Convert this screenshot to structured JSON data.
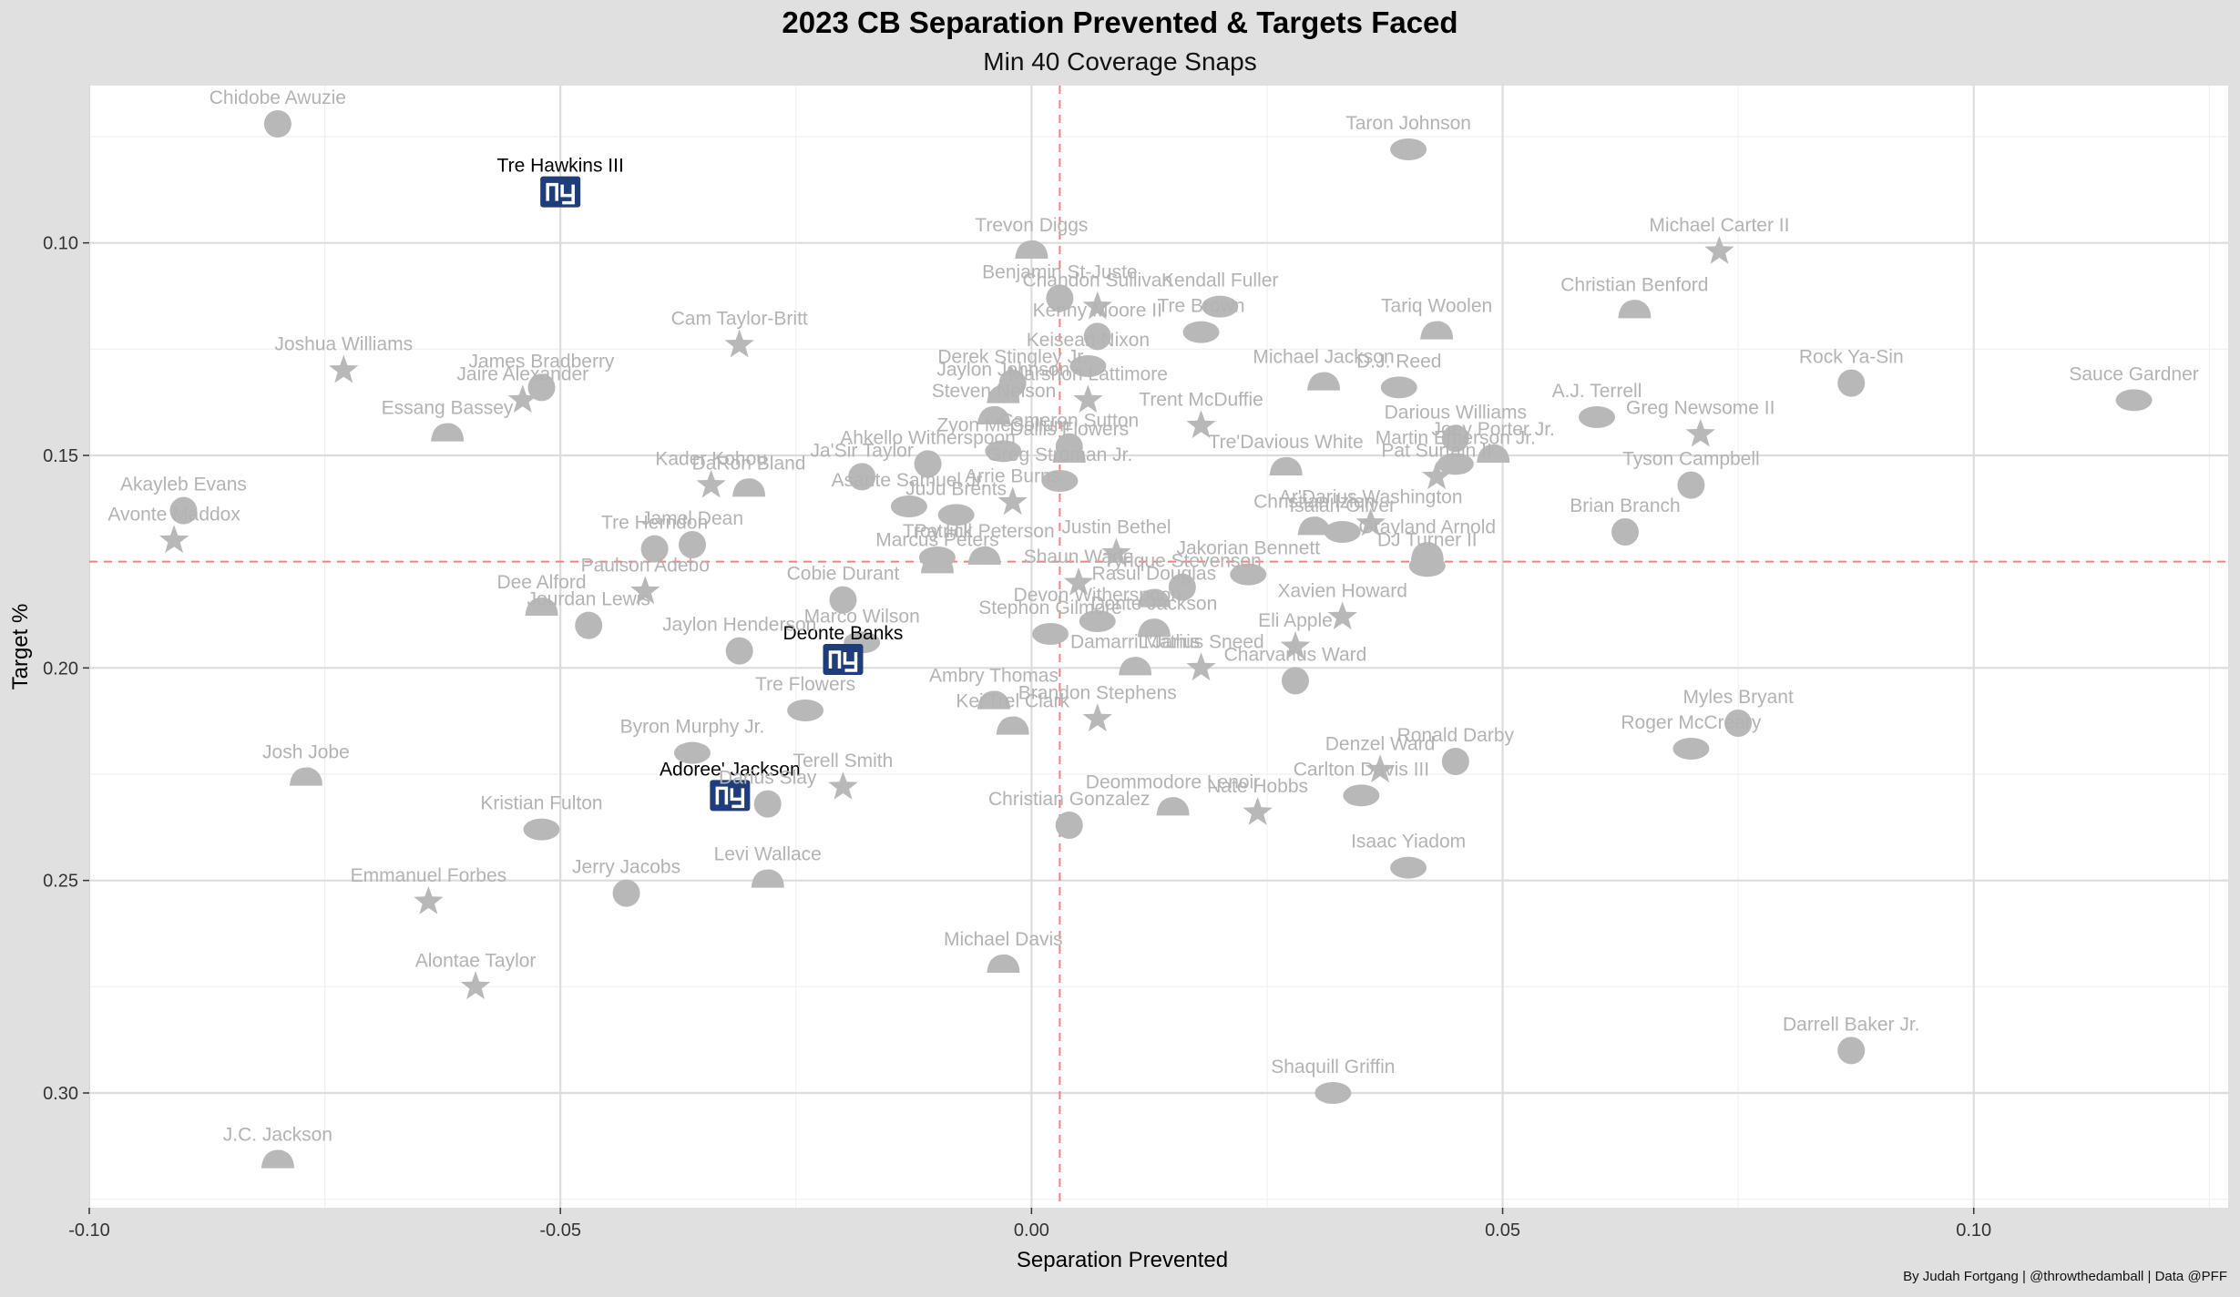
{
  "title": "2023 CB Separation Prevented & Targets Faced",
  "subtitle": "Min 40 Coverage Snaps",
  "caption": "By Judah Fortgang | @throwthedamball | Data @PFF",
  "colors": {
    "background": "#e0e0e0",
    "panel": "#ffffff",
    "grid": "#dcdcdc",
    "point": "#b8b8b8",
    "label": "#b3b3b3",
    "highlight": "#1f3d7a",
    "reference_line": "#e8857f"
  },
  "chart_data": {
    "type": "scatter",
    "xlabel": "Separation Prevented",
    "ylabel": "Target %",
    "xlim": [
      -0.1,
      0.127
    ],
    "ylim": [
      0.327,
      0.063
    ],
    "y_reversed": true,
    "x_ticks": [
      -0.1,
      -0.05,
      0.0,
      0.05,
      0.1
    ],
    "x_tick_labels": [
      "-0.10",
      "-0.05",
      "0.00",
      "0.05",
      "0.10"
    ],
    "y_ticks": [
      0.1,
      0.15,
      0.2,
      0.25,
      0.3
    ],
    "y_tick_labels": [
      "0.10",
      "0.15",
      "0.20",
      "0.25",
      "0.30"
    ],
    "grid": true,
    "reference_lines": {
      "x": 0.003,
      "y": 0.175
    },
    "point_marker": "team-logo-icon",
    "highlight_marker": "ny-giants-logo-icon",
    "points": [
      {
        "name": "Chidobe Awuzie",
        "x": -0.08,
        "y": 0.072
      },
      {
        "name": "Tre Hawkins III",
        "x": -0.05,
        "y": 0.088,
        "highlight": true
      },
      {
        "name": "Taron Johnson",
        "x": 0.04,
        "y": 0.078
      },
      {
        "name": "Trevon Diggs",
        "x": 0.0,
        "y": 0.102
      },
      {
        "name": "Michael Carter II",
        "x": 0.073,
        "y": 0.102
      },
      {
        "name": "Benjamin St-Juste",
        "x": 0.003,
        "y": 0.113
      },
      {
        "name": "Kendall Fuller",
        "x": 0.02,
        "y": 0.115
      },
      {
        "name": "Christian Benford",
        "x": 0.064,
        "y": 0.116
      },
      {
        "name": "Chandon Sullivan",
        "x": 0.007,
        "y": 0.115
      },
      {
        "name": "Kenny Moore II",
        "x": 0.007,
        "y": 0.122
      },
      {
        "name": "Tre Brown",
        "x": 0.018,
        "y": 0.121
      },
      {
        "name": "Tariq Woolen",
        "x": 0.043,
        "y": 0.121
      },
      {
        "name": "Cam Taylor-Britt",
        "x": -0.031,
        "y": 0.124
      },
      {
        "name": "Derek Stingley Jr.",
        "x": -0.002,
        "y": 0.133
      },
      {
        "name": "Keisean Nixon",
        "x": 0.006,
        "y": 0.129
      },
      {
        "name": "Michael Jackson",
        "x": 0.031,
        "y": 0.133
      },
      {
        "name": "Joshua Williams",
        "x": -0.073,
        "y": 0.13
      },
      {
        "name": "James Bradberry",
        "x": -0.052,
        "y": 0.134
      },
      {
        "name": "D.J. Reed",
        "x": 0.039,
        "y": 0.134
      },
      {
        "name": "Jaylon Johnson",
        "x": -0.003,
        "y": 0.136
      },
      {
        "name": "Marshon Lattimore",
        "x": 0.006,
        "y": 0.137
      },
      {
        "name": "Rock Ya-Sin",
        "x": 0.087,
        "y": 0.133
      },
      {
        "name": "Sauce Gardner",
        "x": 0.117,
        "y": 0.137
      },
      {
        "name": "Steven Nelson",
        "x": -0.004,
        "y": 0.141
      },
      {
        "name": "Trent McDuffie",
        "x": 0.018,
        "y": 0.143
      },
      {
        "name": "Darious Williams",
        "x": 0.045,
        "y": 0.146
      },
      {
        "name": "A.J. Terrell",
        "x": 0.06,
        "y": 0.141
      },
      {
        "name": "Essang Bassey",
        "x": -0.062,
        "y": 0.145
      },
      {
        "name": "Jaire Alexander",
        "x": -0.054,
        "y": 0.137
      },
      {
        "name": "Cameron Sutton",
        "x": 0.004,
        "y": 0.148
      },
      {
        "name": "Martin Emerson Jr.",
        "x": 0.045,
        "y": 0.152
      },
      {
        "name": "Joey Porter Jr.",
        "x": 0.049,
        "y": 0.15
      },
      {
        "name": "Greg Newsome II",
        "x": 0.071,
        "y": 0.145
      },
      {
        "name": "Ahkello Witherspoon",
        "x": -0.011,
        "y": 0.152
      },
      {
        "name": "Zyon McCollum",
        "x": -0.003,
        "y": 0.149
      },
      {
        "name": "Dallis Flowers",
        "x": 0.004,
        "y": 0.15
      },
      {
        "name": "Kader Kohou",
        "x": -0.034,
        "y": 0.157
      },
      {
        "name": "Ja'Sir Taylor",
        "x": -0.018,
        "y": 0.155
      },
      {
        "name": "Greg Stroman Jr.",
        "x": 0.003,
        "y": 0.156
      },
      {
        "name": "Tre'Davious White",
        "x": 0.027,
        "y": 0.153
      },
      {
        "name": "Pat Surtain II",
        "x": 0.043,
        "y": 0.155
      },
      {
        "name": "Akayleb Evans",
        "x": -0.09,
        "y": 0.163
      },
      {
        "name": "JuJu Brents",
        "x": -0.008,
        "y": 0.164
      },
      {
        "name": "DaRon Bland",
        "x": -0.03,
        "y": 0.158
      },
      {
        "name": "Arrie Burns",
        "x": -0.002,
        "y": 0.161
      },
      {
        "name": "Tyson Campbell",
        "x": 0.07,
        "y": 0.157
      },
      {
        "name": "Asante Samuel Jr.",
        "x": -0.013,
        "y": 0.162
      },
      {
        "name": "Christian Izien",
        "x": 0.03,
        "y": 0.167
      },
      {
        "name": "Ar'Darius Washington",
        "x": 0.036,
        "y": 0.166
      },
      {
        "name": "Brian Branch",
        "x": 0.063,
        "y": 0.168
      },
      {
        "name": "Isaiah Oliver",
        "x": 0.033,
        "y": 0.168
      },
      {
        "name": "Grayland Arnold",
        "x": 0.042,
        "y": 0.173
      },
      {
        "name": "Avonte Maddox",
        "x": -0.091,
        "y": 0.17
      },
      {
        "name": "Jamel Dean",
        "x": -0.036,
        "y": 0.171
      },
      {
        "name": "Troy Hill",
        "x": -0.01,
        "y": 0.174
      },
      {
        "name": "Patrick Peterson",
        "x": -0.005,
        "y": 0.174
      },
      {
        "name": "Justin Bethel",
        "x": 0.009,
        "y": 0.173
      },
      {
        "name": "Tre Herndon",
        "x": -0.04,
        "y": 0.172
      },
      {
        "name": "DJ Turner II",
        "x": 0.042,
        "y": 0.176
      },
      {
        "name": "Marcus Peters",
        "x": -0.01,
        "y": 0.176
      },
      {
        "name": "Shaun Wade",
        "x": 0.005,
        "y": 0.18
      },
      {
        "name": "Tyrique Stevenson",
        "x": 0.016,
        "y": 0.181
      },
      {
        "name": "Jakorian Bennett",
        "x": 0.023,
        "y": 0.178
      },
      {
        "name": "Dee Alford",
        "x": -0.052,
        "y": 0.186
      },
      {
        "name": "Paulson Adebo",
        "x": -0.041,
        "y": 0.182
      },
      {
        "name": "Cobie Durant",
        "x": -0.02,
        "y": 0.184
      },
      {
        "name": "Devon Witherspoon",
        "x": 0.007,
        "y": 0.189
      },
      {
        "name": "Rasul Douglas",
        "x": 0.013,
        "y": 0.184
      },
      {
        "name": "Xavien Howard",
        "x": 0.033,
        "y": 0.188
      },
      {
        "name": "Jourdan Lewis",
        "x": -0.047,
        "y": 0.19
      },
      {
        "name": "Stephon Gilmore",
        "x": 0.002,
        "y": 0.192
      },
      {
        "name": "Donte Jackson",
        "x": 0.013,
        "y": 0.191
      },
      {
        "name": "Eli Apple",
        "x": 0.028,
        "y": 0.195
      },
      {
        "name": "Deonte Banks",
        "x": -0.02,
        "y": 0.198,
        "highlight": true
      },
      {
        "name": "Jaylon Henderson",
        "x": -0.031,
        "y": 0.196
      },
      {
        "name": "Marco Wilson",
        "x": -0.018,
        "y": 0.194
      },
      {
        "name": "Damarri Mathis",
        "x": 0.011,
        "y": 0.2
      },
      {
        "name": "L'Jarius Sneed",
        "x": 0.018,
        "y": 0.2
      },
      {
        "name": "Charvarius Ward",
        "x": 0.028,
        "y": 0.203
      },
      {
        "name": "Tre Flowers",
        "x": -0.024,
        "y": 0.21
      },
      {
        "name": "Ambry Thomas",
        "x": -0.004,
        "y": 0.208
      },
      {
        "name": "Brandon Stephens",
        "x": 0.007,
        "y": 0.212
      },
      {
        "name": "Myles Bryant",
        "x": 0.075,
        "y": 0.213
      },
      {
        "name": "Byron Murphy Jr.",
        "x": -0.036,
        "y": 0.22
      },
      {
        "name": "Kei'Trel Clark",
        "x": -0.002,
        "y": 0.214
      },
      {
        "name": "Denzel Ward",
        "x": 0.037,
        "y": 0.224
      },
      {
        "name": "Ronald Darby",
        "x": 0.045,
        "y": 0.222
      },
      {
        "name": "Roger McCreary",
        "x": 0.07,
        "y": 0.219
      },
      {
        "name": "Josh Jobe",
        "x": -0.077,
        "y": 0.226
      },
      {
        "name": "Adoree' Jackson",
        "x": -0.032,
        "y": 0.23,
        "highlight": true
      },
      {
        "name": "Terell Smith",
        "x": -0.02,
        "y": 0.228
      },
      {
        "name": "Darius Slay",
        "x": -0.028,
        "y": 0.232
      },
      {
        "name": "Carlton Davis III",
        "x": 0.035,
        "y": 0.23
      },
      {
        "name": "Deommodore Lenoir",
        "x": 0.015,
        "y": 0.233
      },
      {
        "name": "Nate Hobbs",
        "x": 0.024,
        "y": 0.234
      },
      {
        "name": "Christian Gonzalez",
        "x": 0.004,
        "y": 0.237
      },
      {
        "name": "Kristian Fulton",
        "x": -0.052,
        "y": 0.238
      },
      {
        "name": "Levi Wallace",
        "x": -0.028,
        "y": 0.25
      },
      {
        "name": "Emmanuel Forbes",
        "x": -0.064,
        "y": 0.255
      },
      {
        "name": "Jerry Jacobs",
        "x": -0.043,
        "y": 0.253
      },
      {
        "name": "Isaac Yiadom",
        "x": 0.04,
        "y": 0.247
      },
      {
        "name": "Michael Davis",
        "x": -0.003,
        "y": 0.27
      },
      {
        "name": "Alontae Taylor",
        "x": -0.059,
        "y": 0.275
      },
      {
        "name": "Darrell Baker Jr.",
        "x": 0.087,
        "y": 0.29
      },
      {
        "name": "Shaquill Griffin",
        "x": 0.032,
        "y": 0.3
      },
      {
        "name": "J.C. Jackson",
        "x": -0.08,
        "y": 0.316
      }
    ]
  }
}
